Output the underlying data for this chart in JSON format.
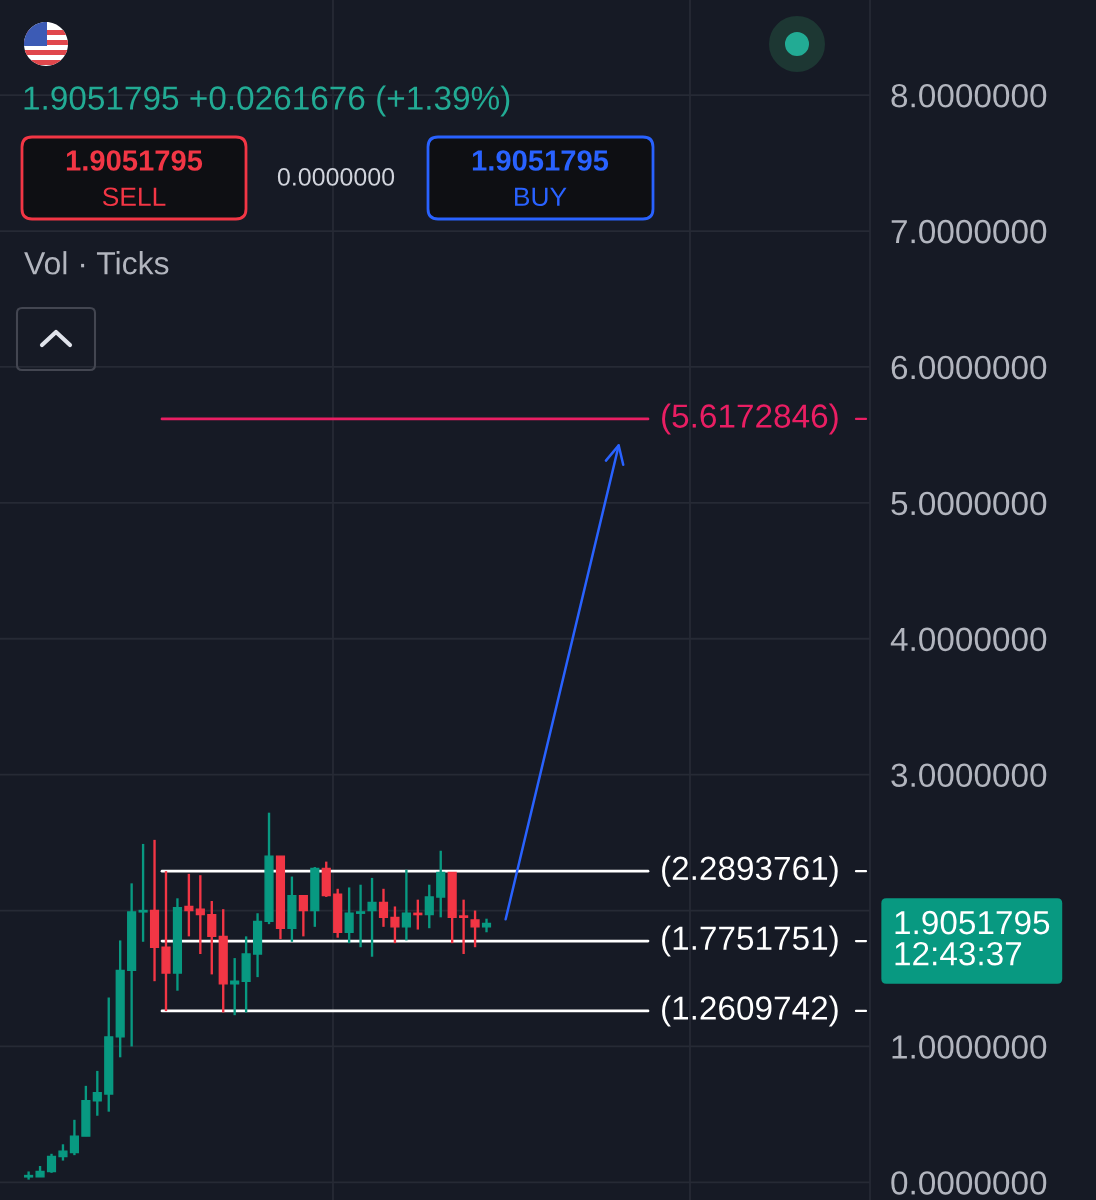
{
  "chart_data": {
    "type": "candlestick",
    "subtitle": "1.9051795 +0.0261676 (+1.39%)",
    "categories": [
      null,
      null,
      null,
      null,
      null,
      null,
      null,
      null,
      null,
      null,
      null,
      null,
      null,
      null,
      null,
      null,
      null,
      null,
      null,
      null,
      null,
      null,
      null,
      null,
      null,
      null,
      null,
      null,
      null,
      null,
      null,
      null,
      null,
      null,
      null,
      null,
      null,
      null,
      null,
      null,
      null,
      null,
      null,
      null,
      null,
      null,
      null,
      null,
      null,
      null,
      null,
      null,
      null,
      null,
      null,
      null,
      null,
      null,
      null,
      null,
      null,
      null,
      null,
      null,
      null,
      null,
      null,
      null,
      null,
      null,
      null,
      null,
      null,
      null,
      null,
      null
    ],
    "ohlc": [
      null,
      null,
      [
        0.04,
        0.08,
        0.02,
        0.05
      ],
      [
        0.04,
        0.12,
        0.04,
        0.08
      ],
      [
        0.08,
        0.21,
        0.07,
        0.19
      ],
      [
        0.19,
        0.28,
        0.16,
        0.23
      ],
      [
        0.22,
        0.46,
        0.2,
        0.34
      ],
      [
        0.34,
        0.71,
        0.34,
        0.6
      ],
      [
        0.6,
        0.82,
        0.49,
        0.66
      ],
      [
        0.65,
        1.36,
        0.52,
        1.07
      ],
      [
        1.07,
        1.78,
        0.92,
        1.56
      ],
      [
        1.56,
        2.2,
        1.0,
        1.99
      ],
      [
        1.99,
        2.49,
        1.77,
        2.0
      ],
      [
        2.0,
        2.52,
        1.48,
        1.73
      ],
      [
        1.73,
        2.29,
        1.26,
        1.54
      ],
      [
        1.54,
        2.09,
        1.41,
        2.02
      ],
      [
        2.03,
        2.27,
        1.81,
        2.0
      ],
      [
        2.01,
        2.26,
        1.68,
        1.97
      ],
      [
        1.97,
        2.07,
        1.53,
        1.81
      ],
      [
        1.81,
        2.01,
        1.25,
        1.46
      ],
      [
        1.46,
        1.65,
        1.23,
        1.48
      ],
      [
        1.48,
        1.81,
        1.25,
        1.68
      ],
      [
        1.68,
        1.98,
        1.51,
        1.92
      ],
      [
        1.92,
        2.72,
        1.9,
        2.4
      ],
      [
        2.4,
        2.4,
        1.79,
        1.87
      ],
      [
        1.87,
        2.25,
        1.77,
        2.11
      ],
      [
        2.11,
        2.11,
        1.81,
        2.0
      ],
      [
        2.0,
        2.32,
        1.88,
        2.31
      ],
      [
        2.31,
        2.36,
        2.1,
        2.11
      ],
      [
        2.12,
        2.16,
        1.8,
        1.84
      ],
      [
        1.84,
        2.17,
        1.76,
        1.98
      ],
      [
        1.98,
        2.19,
        1.73,
        1.99
      ],
      [
        2.0,
        2.24,
        1.66,
        2.06
      ],
      [
        2.06,
        2.16,
        1.88,
        1.95
      ],
      [
        1.95,
        2.03,
        1.76,
        1.88
      ],
      [
        1.88,
        2.3,
        1.78,
        1.98
      ],
      [
        1.98,
        2.08,
        1.86,
        1.97
      ],
      [
        1.97,
        2.19,
        1.87,
        2.1
      ],
      [
        2.1,
        2.44,
        1.95,
        2.28
      ],
      [
        2.28,
        2.28,
        1.76,
        1.95
      ],
      [
        1.96,
        2.08,
        1.68,
        1.95
      ],
      [
        1.93,
        2.0,
        1.73,
        1.88
      ],
      [
        1.88,
        1.94,
        1.84,
        1.9051795
      ],
      null,
      null,
      null,
      null,
      null,
      null,
      null,
      null,
      null,
      null,
      null,
      null,
      null,
      null,
      null,
      null,
      null,
      null,
      null,
      null,
      null,
      null,
      null,
      null,
      null,
      null,
      null,
      null,
      null,
      null,
      null,
      null,
      null
    ],
    "colors": [
      null,
      null,
      "#089981",
      "#089981",
      "#089981",
      "#089981",
      "#089981",
      "#089981",
      "#089981",
      "#089981",
      "#089981",
      "#089981",
      "#089981",
      "#f23645",
      "#f23645",
      "#089981",
      "#f23645",
      "#f23645",
      "#f23645",
      "#f23645",
      "#089981",
      "#089981",
      "#089981",
      "#089981",
      "#f23645",
      "#089981",
      "#f23645",
      "#089981",
      "#f23645",
      "#f23645",
      "#089981",
      "#089981",
      "#089981",
      "#f23645",
      "#f23645",
      "#089981",
      "#f23645",
      "#089981",
      "#089981",
      "#f23645",
      "#f23645",
      "#f23645",
      "#089981",
      null,
      null,
      null,
      null,
      null,
      null,
      null,
      null,
      null,
      null,
      null,
      null,
      null,
      null,
      null,
      null,
      null,
      null,
      null,
      null,
      null,
      null,
      null,
      null,
      null,
      null,
      null,
      null,
      null,
      null,
      null,
      null,
      null
    ],
    "ylim": [
      -0.13,
      8.7
    ],
    "yticks": [
      {
        "value": 0,
        "label": "0.0000000"
      },
      {
        "value": 1,
        "label": "1.0000000"
      },
      {
        "value": 2,
        "label": null
      },
      {
        "value": 3,
        "label": "3.0000000"
      },
      {
        "value": 4,
        "label": "4.0000000"
      },
      {
        "value": 5,
        "label": "5.0000000"
      },
      {
        "value": 6,
        "label": "6.0000000"
      },
      {
        "value": 7,
        "label": "7.0000000"
      },
      {
        "value": 8,
        "label": "8.0000000"
      }
    ],
    "grid": true,
    "tick_labels": "y",
    "ref_lines": [
      {
        "axis": "y",
        "value": 5.6172846,
        "label": "(5.6172846)",
        "color": "#e91e63"
      },
      {
        "axis": "y",
        "value": 2.2893761,
        "label": "(2.2893761)",
        "color": "#ffffff"
      },
      {
        "axis": "y",
        "value": 1.7751751,
        "label": "(1.7751751)",
        "color": "#ffffff"
      },
      {
        "axis": "y",
        "value": 1.2609742,
        "label": "(1.2609742)",
        "color": "#ffffff"
      }
    ],
    "annotations": [
      "1.9051795",
      "SELL",
      "0.0000000",
      "1.9051795",
      "BUY",
      "Vol · Ticks",
      "1.9051795\n12:43:37"
    ]
  }
}
